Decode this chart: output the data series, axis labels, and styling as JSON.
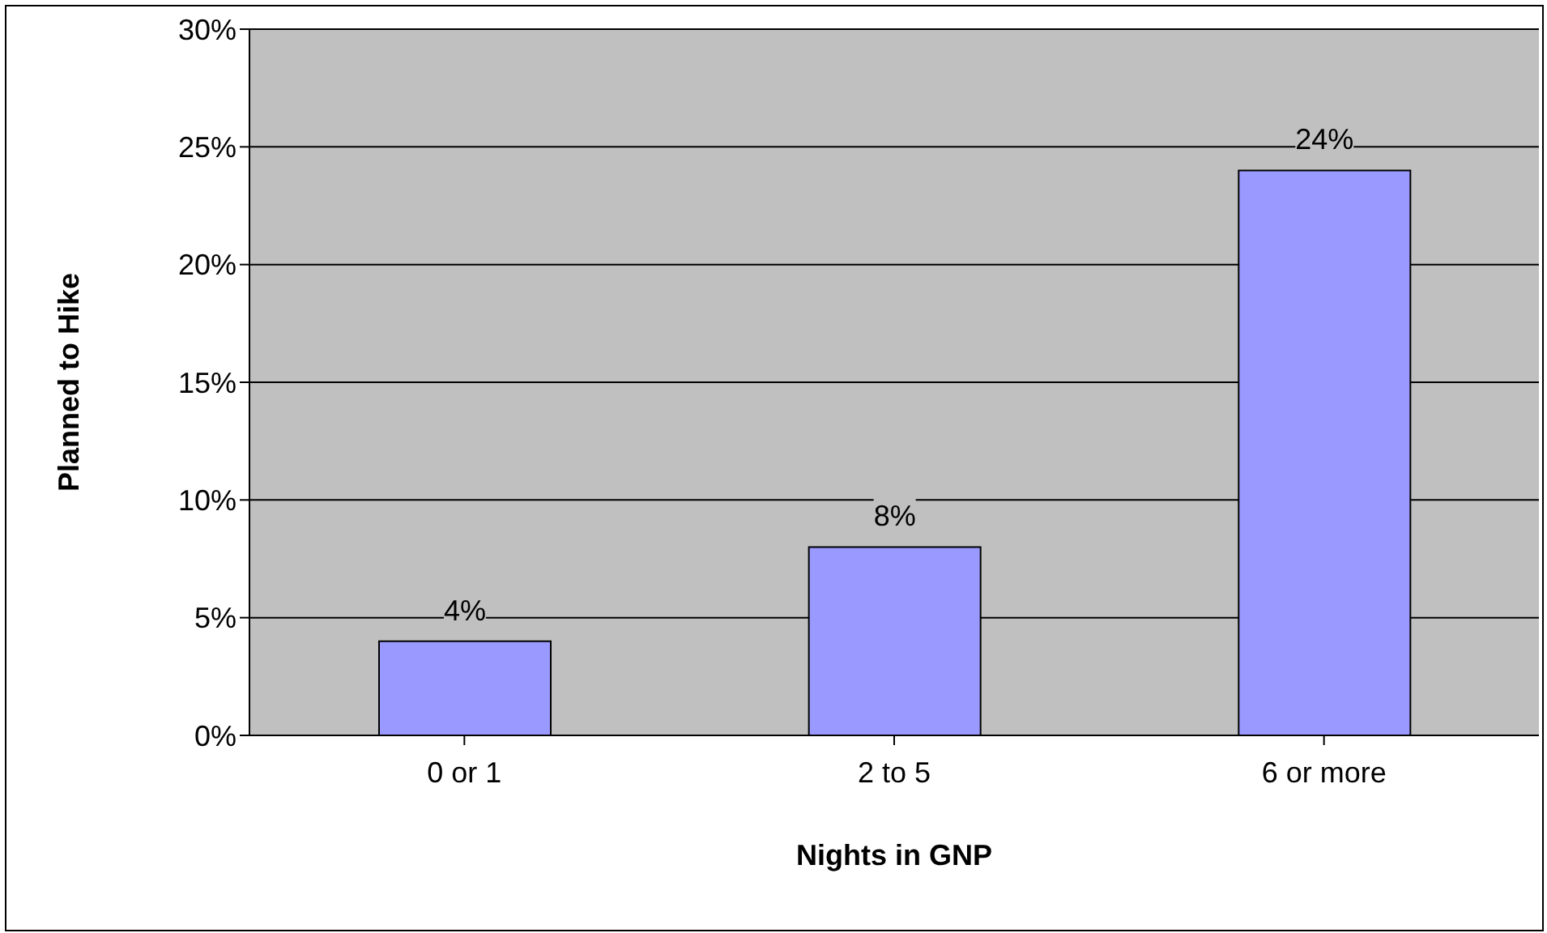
{
  "chart_data": {
    "type": "bar",
    "xlabel": "Nights in GNP",
    "ylabel": "Planned to Hike",
    "categories": [
      "0 or 1",
      "2 to 5",
      "6 or more"
    ],
    "values": [
      4,
      8,
      24
    ],
    "value_labels": [
      "4%",
      "8%",
      "24%"
    ],
    "color": "#9999ff",
    "ylim": [
      0,
      30
    ],
    "yticks": [
      {
        "value": 0,
        "label": "0%"
      },
      {
        "value": 5,
        "label": "5%"
      },
      {
        "value": 10,
        "label": "10%"
      },
      {
        "value": 15,
        "label": "15%"
      },
      {
        "value": 20,
        "label": "20%"
      },
      {
        "value": 25,
        "label": "25%"
      },
      {
        "value": 30,
        "label": "30%"
      }
    ],
    "grid": "y"
  }
}
